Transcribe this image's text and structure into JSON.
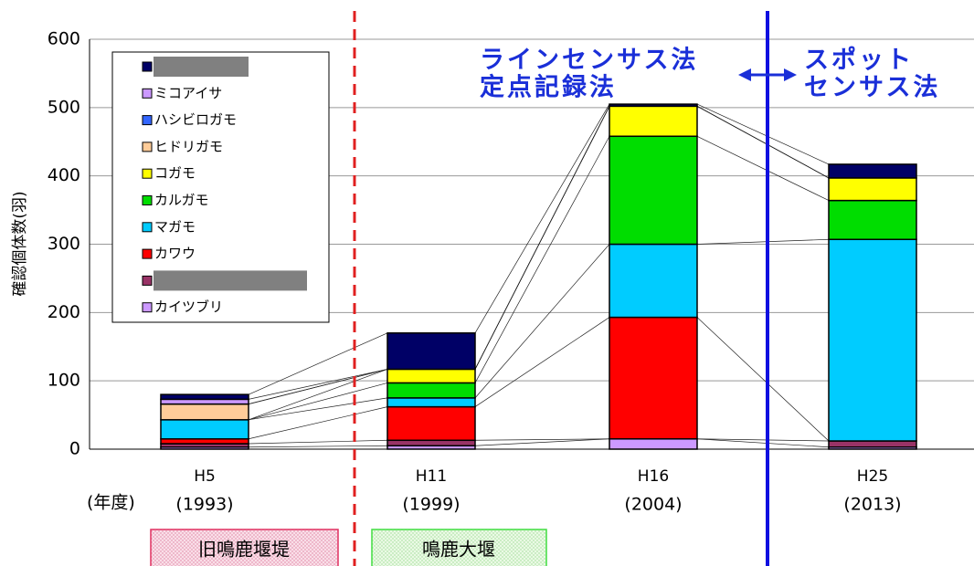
{
  "chart_data": {
    "type": "stacked_bar",
    "y_label": "確認個体数(羽)",
    "x_label": "(年度)",
    "categories": [
      "H5",
      "H11",
      "H16",
      "H25"
    ],
    "category_years": [
      "(1993)",
      "(1999)",
      "(2004)",
      "(2013)"
    ],
    "ylim": [
      0,
      600
    ],
    "yticks": [
      0,
      100,
      200,
      300,
      400,
      500,
      600
    ],
    "grid": true,
    "series": [
      {
        "name": "カイツブリ",
        "color": "#cc99ff",
        "values": [
          3,
          5,
          15,
          3
        ]
      },
      {
        "name": null,
        "color": "#993366",
        "values": [
          5,
          8,
          0,
          9
        ]
      },
      {
        "name": "カワウ",
        "color": "#ff0000",
        "values": [
          7,
          49,
          178,
          0
        ]
      },
      {
        "name": "マガモ",
        "color": "#00ccff",
        "values": [
          28,
          13,
          107,
          295
        ]
      },
      {
        "name": "カルガモ",
        "color": "#00dd00",
        "values": [
          0,
          22,
          158,
          57
        ]
      },
      {
        "name": "コガモ",
        "color": "#ffff00",
        "values": [
          0,
          20,
          44,
          33
        ]
      },
      {
        "name": "ヒドリガモ",
        "color": "#ffcc99",
        "values": [
          23,
          0,
          0,
          0
        ]
      },
      {
        "name": "ハシビロガモ",
        "color": "#3366ff",
        "values": [
          0,
          0,
          0,
          0
        ]
      },
      {
        "name": "ミコアイサ",
        "color": "#cc99ff",
        "values": [
          7,
          0,
          0,
          0
        ]
      },
      {
        "name": null,
        "color": "#000066",
        "values": [
          7,
          53,
          3,
          20
        ]
      }
    ],
    "annotations": [
      "ラインセンサス法",
      "定点記録法",
      "スポット",
      "センサス法"
    ],
    "period_labels": [
      "旧鳴鹿堰堤",
      "鳴鹿大堰"
    ]
  }
}
